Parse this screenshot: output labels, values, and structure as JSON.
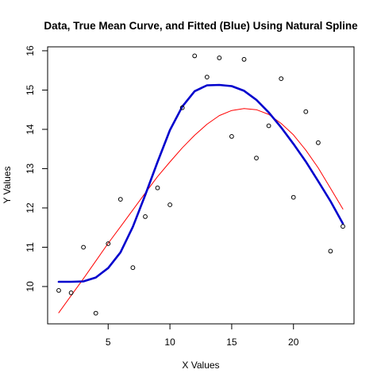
{
  "chart_data": {
    "type": "scatter",
    "title": "Data, True Mean Curve, and Fitted (Blue) Using Natural Spline",
    "xlabel": "X Values",
    "ylabel": "Y Values",
    "xlim": [
      0.1,
      24.9
    ],
    "ylim": [
      9.05,
      16.1
    ],
    "xticks": [
      5,
      10,
      15,
      20
    ],
    "yticks": [
      10,
      11,
      12,
      13,
      14,
      15,
      16
    ],
    "grid": false,
    "points": {
      "x": [
        1,
        2,
        3,
        4,
        5,
        6,
        7,
        8,
        9,
        10,
        11,
        12,
        13,
        14,
        15,
        16,
        17,
        18,
        19,
        20,
        21,
        22,
        23,
        24
      ],
      "y": [
        9.9,
        9.84,
        11.0,
        9.32,
        11.09,
        12.22,
        10.48,
        11.78,
        12.51,
        12.08,
        14.55,
        15.87,
        15.33,
        15.82,
        13.82,
        15.78,
        13.27,
        14.09,
        15.29,
        12.27,
        14.45,
        13.66,
        10.9,
        11.53
      ]
    },
    "series": [
      {
        "color": "#ff0000",
        "x": [
          1,
          2,
          3,
          4,
          5,
          6,
          7,
          8,
          9,
          10,
          11,
          12,
          13,
          14,
          15,
          16,
          17,
          18,
          19,
          20,
          21,
          22,
          23,
          24
        ],
        "y": [
          9.33,
          9.77,
          10.2,
          10.65,
          11.1,
          11.52,
          11.95,
          12.38,
          12.8,
          13.17,
          13.53,
          13.85,
          14.13,
          14.35,
          14.48,
          14.53,
          14.5,
          14.38,
          14.15,
          13.86,
          13.47,
          13.02,
          12.5,
          11.97
        ]
      },
      {
        "color": "#0000cd",
        "x": [
          1,
          2,
          3,
          4,
          5,
          6,
          7,
          8,
          9,
          10,
          11,
          12,
          13,
          14,
          15,
          16,
          17,
          18,
          19,
          20,
          21,
          22,
          23,
          24
        ],
        "y": [
          10.12,
          10.12,
          10.13,
          10.23,
          10.47,
          10.87,
          11.52,
          12.33,
          13.17,
          13.98,
          14.58,
          14.97,
          15.12,
          15.13,
          15.1,
          14.98,
          14.75,
          14.43,
          14.05,
          13.63,
          13.18,
          12.68,
          12.17,
          11.6
        ]
      }
    ]
  }
}
